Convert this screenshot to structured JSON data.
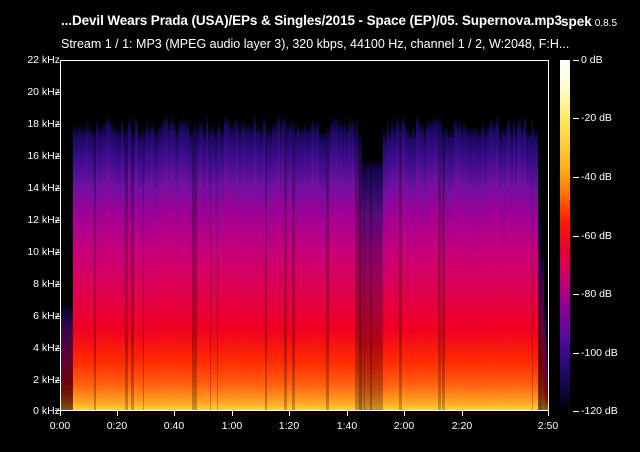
{
  "header": {
    "file_title": "...Devil Wears Prada (USA)/EPs & Singles/2015 - Space (EP)/05. Supernova.mp3",
    "app_name": "spek",
    "app_version": "0.8.5",
    "stream_info": "Stream 1 / 1: MP3 (MPEG audio layer 3), 320 kbps, 44100 Hz, channel 1 / 2, W:2048, F:H..."
  },
  "y_axis": {
    "ticks": [
      "22 kHz",
      "20 kHz",
      "18 kHz",
      "16 kHz",
      "14 kHz",
      "12 kHz",
      "10 kHz",
      "8 kHz",
      "6 kHz",
      "4 kHz",
      "2 kHz",
      "0 kHz"
    ]
  },
  "x_axis": {
    "ticks": [
      "0:00",
      "0:20",
      "0:40",
      "1:00",
      "1:20",
      "1:40",
      "2:00",
      "2:20",
      "2:50"
    ]
  },
  "colorbar": {
    "ticks": [
      "0 dB",
      "-20 dB",
      "-40 dB",
      "-60 dB",
      "-80 dB",
      "-100 dB",
      "-120 dB"
    ]
  },
  "colors": {
    "background": "#000000",
    "axis": "#ffffff",
    "text": "#ffffff"
  }
}
